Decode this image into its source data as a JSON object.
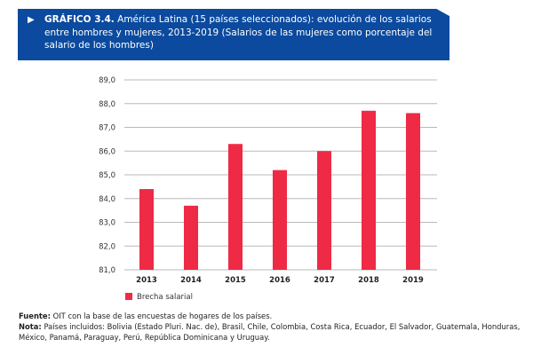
{
  "header": {
    "icon": "play-triangle-icon",
    "label": "GRÁFICO 3.4.",
    "title": "América Latina (15 países seleccionados): evolución de los salarios entre hombres y mujeres, 2013-2019 (Salarios de las mujeres como porcentaje del salario de los hombres)"
  },
  "chart_data": {
    "type": "bar",
    "categories": [
      "2013",
      "2014",
      "2015",
      "2016",
      "2017",
      "2018",
      "2019"
    ],
    "series": [
      {
        "name": "Brecha salarial",
        "values": [
          84.4,
          83.7,
          86.3,
          85.2,
          86.0,
          87.7,
          87.6
        ],
        "color": "#ee2a45"
      }
    ],
    "ylim": [
      81,
      89
    ],
    "yticks": [
      "81,0",
      "82,0",
      "83,0",
      "84,0",
      "85,0",
      "86,0",
      "87,0",
      "88,0",
      "89,0"
    ],
    "grid": true,
    "legend": "bottom-left"
  },
  "footer": {
    "source_label": "Fuente:",
    "source": "OIT con la base de las encuestas de hogares de los países.",
    "note_label": "Nota:",
    "note": "Países incluidos: Bolivia (Estado Pluri. Nac. de), Brasil, Chile, Colombia, Costa Rica, Ecuador, El Salvador, Guatemala, Honduras, México, Panamá, Paraguay, Perú, República Dominicana y Uruguay."
  }
}
